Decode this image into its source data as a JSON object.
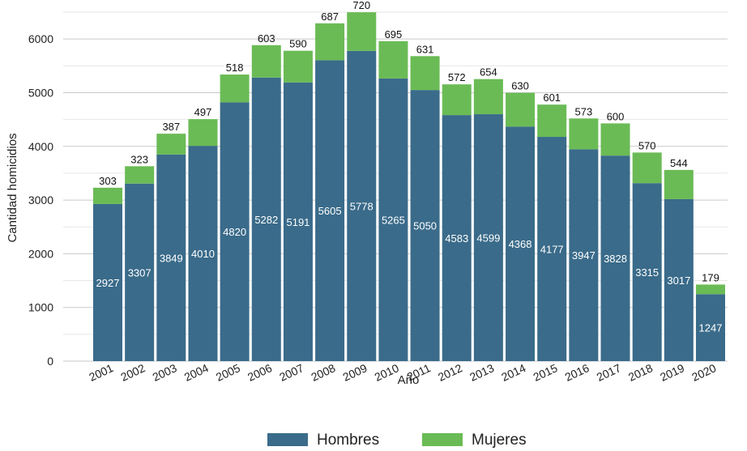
{
  "chart_data": {
    "type": "bar",
    "stacked": true,
    "xlabel": "Año",
    "ylabel": "Cantidad homicidios",
    "ylim": [
      0,
      6500
    ],
    "yticks": [
      0,
      1000,
      2000,
      3000,
      4000,
      5000,
      6000
    ],
    "grid": "horizontal",
    "legend_position": "bottom",
    "categories": [
      "2001",
      "2002",
      "2003",
      "2004",
      "2005",
      "2006",
      "2007",
      "2008",
      "2009",
      "2010",
      "2011",
      "2012",
      "2013",
      "2014",
      "2015",
      "2016",
      "2017",
      "2018",
      "2019",
      "2020"
    ],
    "series": [
      {
        "name": "Hombres",
        "color": "#3a6b8a",
        "values": [
          2927,
          3307,
          3849,
          4010,
          4820,
          5282,
          5191,
          5605,
          5778,
          5265,
          5050,
          4583,
          4599,
          4368,
          4177,
          3947,
          3828,
          3315,
          3017,
          1247
        ]
      },
      {
        "name": "Mujeres",
        "color": "#6abb55",
        "values": [
          303,
          323,
          387,
          497,
          518,
          603,
          590,
          687,
          720,
          695,
          631,
          572,
          654,
          630,
          601,
          573,
          600,
          570,
          544,
          179
        ]
      }
    ]
  }
}
